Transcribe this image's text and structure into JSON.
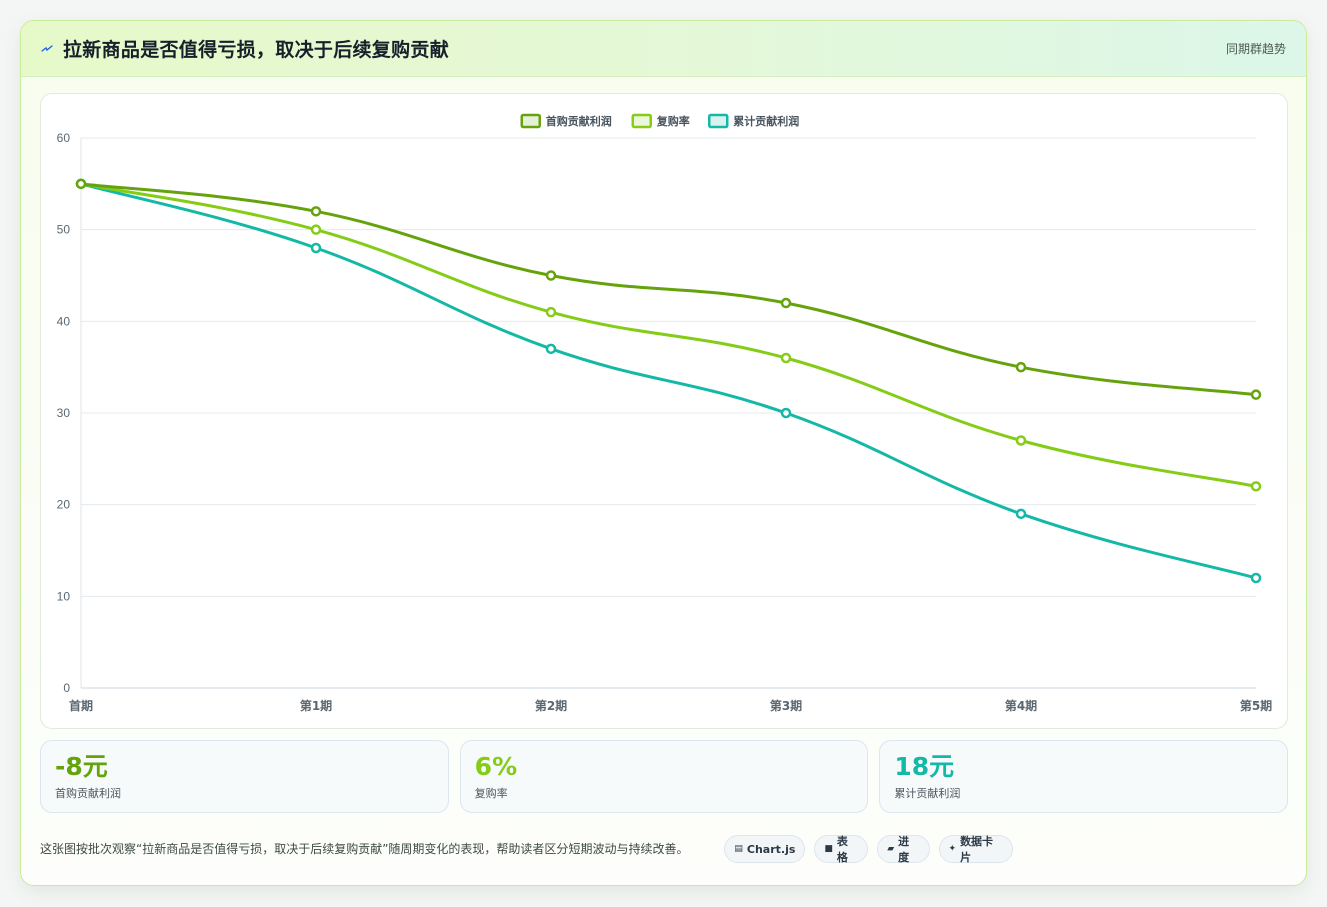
{
  "header": {
    "icon": "lightning-icon",
    "title": "拉新商品是否值得亏损，取决于后续复购贡献",
    "link": "同期群趋势"
  },
  "chart_data": {
    "type": "line",
    "categories": [
      "首期",
      "第1期",
      "第2期",
      "第3期",
      "第4期",
      "第5期"
    ],
    "series": [
      {
        "name": "首购贡献利润",
        "color": "#65a30d",
        "values": [
          55,
          52,
          45,
          42,
          35,
          32
        ]
      },
      {
        "name": "复购率",
        "color": "#84cc16",
        "values": [
          55,
          50,
          41,
          36,
          27,
          22
        ]
      },
      {
        "name": "累计贡献利润",
        "color": "#14b8a6",
        "values": [
          55,
          48,
          37,
          30,
          19,
          12
        ]
      }
    ],
    "ylim": [
      0,
      60
    ],
    "yticks": [
      0,
      10,
      20,
      30,
      40,
      50,
      60
    ],
    "grid": true,
    "legend_position": "top"
  },
  "kpis": [
    {
      "value": "-8元",
      "label": "首购贡献利润",
      "color": "#65a30d"
    },
    {
      "value": "6%",
      "label": "复购率",
      "color": "#84cc16"
    },
    {
      "value": "18元",
      "label": "累计贡献利润",
      "color": "#14b8a6"
    }
  ],
  "footer": {
    "description": "这张图按批次观察“拉新商品是否值得亏损，取决于后续复购贡献”随周期变化的表现，帮助读者区分短期波动与持续改善。",
    "tags": [
      {
        "icon": "chart-icon",
        "glyph": "▤",
        "label": "Chart.js"
      },
      {
        "icon": "table-icon",
        "glyph": "■",
        "label": "表格"
      },
      {
        "icon": "progress-icon",
        "glyph": "▰",
        "label": "进度"
      },
      {
        "icon": "sparkle-icon",
        "glyph": "✦",
        "label": "数据卡片"
      }
    ]
  }
}
